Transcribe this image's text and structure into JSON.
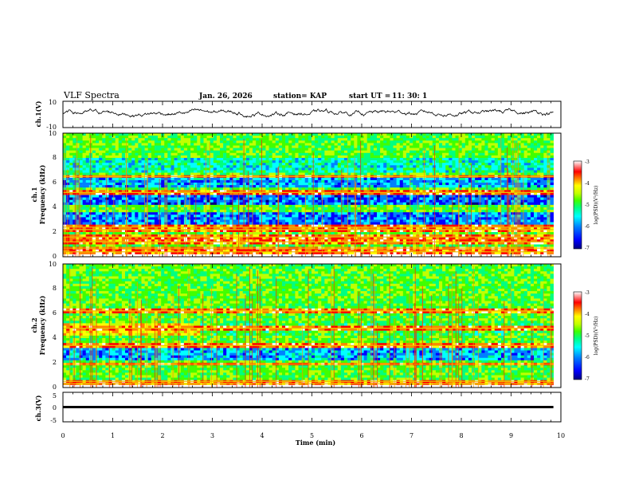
{
  "header": {
    "title": "VLF Spectra",
    "date": "Jan. 26, 2026",
    "station": "station= KAP",
    "start_label": "start  UT =",
    "start_time": "11: 30: 1"
  },
  "x_axis": {
    "label": "Time  (min)",
    "range": [
      0,
      10
    ],
    "ticks": [
      "0",
      "1",
      "2",
      "3",
      "4",
      "5",
      "6",
      "7",
      "8",
      "9",
      "10"
    ]
  },
  "panels": {
    "ch1_waveform": {
      "ylabel": "ch.1(V)",
      "ytick_top": "10",
      "ytick_bottom": "-10"
    },
    "ch1_spectrogram": {
      "ylabel_a": "ch.1",
      "ylabel_b": "Frequency  (kHz)",
      "yticks": [
        "0",
        "2",
        "4",
        "6",
        "8",
        "10"
      ]
    },
    "ch2_spectrogram": {
      "ylabel_a": "ch.2",
      "ylabel_b": "Frequency  (kHz)",
      "yticks": [
        "0",
        "2",
        "4",
        "6",
        "8",
        "10"
      ]
    },
    "ch3_waveform": {
      "ylabel": "ch.3(V)",
      "ytick_top": "5",
      "ytick_mid": "0",
      "ytick_bottom": "-5"
    }
  },
  "colorbar": {
    "label": "log(PSD)(V²/Hz)",
    "ticks": [
      "-3",
      "-4",
      "-5",
      "-6",
      "-7"
    ],
    "colors": [
      "#000080",
      "#0000ff",
      "#0080ff",
      "#00ffff",
      "#00ff80",
      "#40ff00",
      "#c0ff00",
      "#ffff00",
      "#ff8000",
      "#ff0000",
      "#ffffff"
    ]
  },
  "chart_data": {
    "type": "heatmap",
    "title": "VLF Spectra",
    "xlabel": "Time  (min)",
    "xlim": [
      0,
      10
    ],
    "data_end_min": 9.85,
    "series": [
      {
        "name": "ch.1(V)",
        "kind": "waveform",
        "ylim": [
          -10,
          10
        ],
        "typical_range": [
          -3,
          6
        ]
      },
      {
        "name": "ch.1",
        "kind": "spectrogram",
        "ylabel": "Frequency  (kHz)",
        "ylim": [
          0,
          10
        ],
        "zlabel": "log(PSD)(V²/Hz)",
        "zlim": [
          -7,
          -3
        ],
        "bands_khz": [
          {
            "lo": 2.5,
            "hi": 3.5,
            "level": -6.2
          },
          {
            "lo": 4.2,
            "hi": 5.0,
            "level": -6.3
          },
          {
            "lo": 5.6,
            "hi": 6.3,
            "level": -6.0
          },
          {
            "lo": 6.8,
            "hi": 8.0,
            "level": -5.6
          }
        ],
        "lines_khz": [
          0.4,
          0.7,
          1.2,
          1.6,
          2.2,
          2.4,
          5.2,
          6.5
        ]
      },
      {
        "name": "ch.2",
        "kind": "spectrogram",
        "ylabel": "Frequency  (kHz)",
        "ylim": [
          0,
          10
        ],
        "zlabel": "log(PSD)(V²/Hz)",
        "zlim": [
          -7,
          -3
        ],
        "bands_khz": [
          {
            "lo": 2.3,
            "hi": 3.3,
            "level": -6.0
          },
          {
            "lo": 4.3,
            "hi": 5.3,
            "level": -4.2,
            "t_end": 2.7
          }
        ],
        "lines_khz": [
          0.3,
          0.5,
          1.9,
          3.4,
          4.8,
          6.2
        ]
      },
      {
        "name": "ch.3(V)",
        "kind": "waveform",
        "ylim": [
          -5,
          5
        ],
        "typical_range": [
          -0.4,
          0.4
        ]
      }
    ]
  }
}
